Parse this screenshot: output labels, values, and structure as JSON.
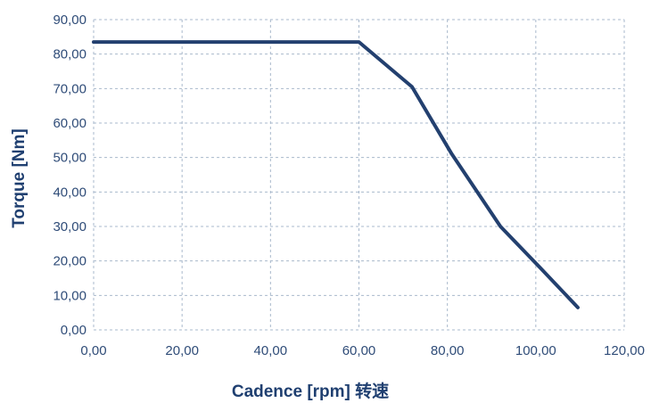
{
  "chart_data": {
    "type": "line",
    "xlabel": "Cadence [rpm] 转速",
    "ylabel": "Torque [Nm]",
    "xlim": [
      0,
      120
    ],
    "ylim": [
      0,
      90
    ],
    "x_ticks": [
      "0,00",
      "20,00",
      "40,00",
      "60,00",
      "80,00",
      "100,00",
      "120,00"
    ],
    "y_ticks": [
      "0,00",
      "10,00",
      "20,00",
      "30,00",
      "40,00",
      "50,00",
      "60,00",
      "70,00",
      "80,00",
      "90,00"
    ],
    "grid": true,
    "series": [
      {
        "x": [
          0,
          60,
          72,
          81,
          92,
          101,
          109.5
        ],
        "y": [
          83.5,
          83.5,
          70.5,
          51,
          30,
          18,
          6.5
        ]
      }
    ],
    "colors": {
      "line": "#23406f",
      "text": "#2f4c78",
      "grid": "#a9b9cc"
    }
  }
}
